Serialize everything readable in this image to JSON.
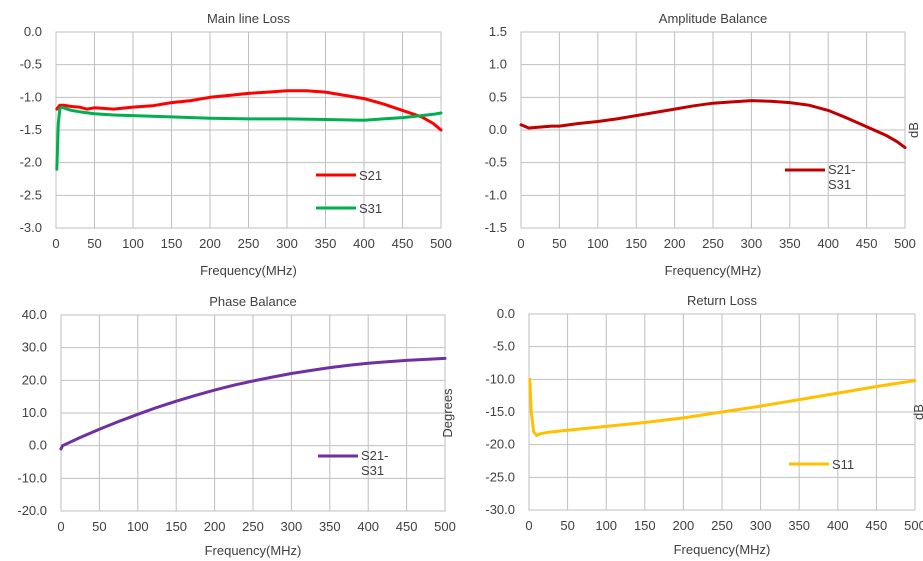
{
  "chart_data": [
    {
      "type": "line",
      "title": "Main line Loss",
      "xlabel": "Frequency(MHz)",
      "ylabel": "",
      "xlim": [
        0,
        500
      ],
      "ylim": [
        -3.0,
        0.0
      ],
      "xticks": [
        "0",
        "50",
        "100",
        "150",
        "200",
        "250",
        "300",
        "350",
        "400",
        "450",
        "500"
      ],
      "yticks": [
        "0.0",
        "-0.5",
        "-1.0",
        "-1.5",
        "-2.0",
        "-2.5",
        "-3.0"
      ],
      "grid": true,
      "legend_position": "bottom-right",
      "series": [
        {
          "name": "S21",
          "color": "#ff0000",
          "x": [
            1,
            5,
            10,
            20,
            30,
            40,
            50,
            75,
            100,
            125,
            150,
            175,
            200,
            225,
            250,
            275,
            300,
            325,
            350,
            375,
            400,
            425,
            450,
            475,
            490,
            500
          ],
          "y": [
            -1.18,
            -1.12,
            -1.12,
            -1.14,
            -1.15,
            -1.18,
            -1.16,
            -1.18,
            -1.15,
            -1.13,
            -1.08,
            -1.05,
            -1.0,
            -0.97,
            -0.94,
            -0.92,
            -0.9,
            -0.9,
            -0.92,
            -0.97,
            -1.02,
            -1.1,
            -1.2,
            -1.3,
            -1.4,
            -1.5
          ]
        },
        {
          "name": "S31",
          "color": "#00b050",
          "x": [
            1,
            3,
            5,
            8,
            12,
            20,
            30,
            50,
            75,
            100,
            150,
            200,
            250,
            300,
            350,
            400,
            450,
            475,
            490,
            500
          ],
          "y": [
            -2.1,
            -1.4,
            -1.17,
            -1.15,
            -1.17,
            -1.2,
            -1.22,
            -1.25,
            -1.27,
            -1.28,
            -1.3,
            -1.32,
            -1.33,
            -1.33,
            -1.34,
            -1.35,
            -1.31,
            -1.28,
            -1.26,
            -1.24
          ]
        }
      ]
    },
    {
      "type": "line",
      "title": "Amplitude Balance",
      "xlabel": "Frequency(MHz)",
      "ylabel": "dB",
      "xlim": [
        0,
        500
      ],
      "ylim": [
        -1.5,
        1.5
      ],
      "xticks": [
        "0",
        "50",
        "100",
        "150",
        "200",
        "250",
        "300",
        "350",
        "400",
        "450",
        "500"
      ],
      "yticks": [
        "1.5",
        "1.0",
        "0.5",
        "0.0",
        "-0.5",
        "-1.0",
        "-1.5"
      ],
      "grid": true,
      "legend_position": "bottom-right",
      "series": [
        {
          "name": "S21-S31",
          "legend_lines": [
            "S21-",
            "S31"
          ],
          "color": "#c00000",
          "x": [
            0,
            10,
            20,
            30,
            40,
            50,
            75,
            100,
            125,
            150,
            175,
            200,
            225,
            250,
            275,
            300,
            325,
            350,
            375,
            400,
            425,
            450,
            475,
            490,
            500
          ],
          "y": [
            0.08,
            0.03,
            0.04,
            0.05,
            0.06,
            0.06,
            0.1,
            0.13,
            0.17,
            0.22,
            0.27,
            0.32,
            0.37,
            0.41,
            0.43,
            0.45,
            0.44,
            0.42,
            0.38,
            0.3,
            0.18,
            0.05,
            -0.08,
            -0.18,
            -0.27
          ]
        }
      ]
    },
    {
      "type": "line",
      "title": "Phase Balance",
      "xlabel": "Frequency(MHz)",
      "ylabel": "Degrees",
      "xlim": [
        0,
        500
      ],
      "ylim": [
        -20.0,
        40.0
      ],
      "xticks": [
        "0",
        "50",
        "100",
        "150",
        "200",
        "250",
        "300",
        "350",
        "400",
        "450",
        "500"
      ],
      "yticks": [
        "40.0",
        "30.0",
        "20.0",
        "10.0",
        "0.0",
        "-10.0",
        "-20.0"
      ],
      "grid": true,
      "legend_position": "bottom-right",
      "series": [
        {
          "name": "S21-S31",
          "legend_lines": [
            "S21-",
            "S31"
          ],
          "color": "#7030a0",
          "x": [
            0,
            2,
            25,
            50,
            75,
            100,
            125,
            150,
            175,
            200,
            225,
            250,
            275,
            300,
            325,
            350,
            375,
            400,
            425,
            450,
            475,
            500
          ],
          "y": [
            -1.0,
            0.0,
            2.5,
            5.0,
            7.4,
            9.6,
            11.7,
            13.6,
            15.4,
            17.0,
            18.5,
            19.8,
            21.0,
            22.1,
            23.0,
            23.9,
            24.6,
            25.2,
            25.7,
            26.1,
            26.4,
            26.7
          ]
        }
      ]
    },
    {
      "type": "line",
      "title": "Return Loss",
      "xlabel": "Frequency(MHz)",
      "ylabel": "dB",
      "xlim": [
        0,
        500
      ],
      "ylim": [
        -30.0,
        0.0
      ],
      "xticks": [
        "0",
        "50",
        "100",
        "150",
        "200",
        "250",
        "300",
        "350",
        "400",
        "450",
        "500"
      ],
      "yticks": [
        "0.0",
        "-5.0",
        "-10.0",
        "-15.0",
        "-20.0",
        "-25.0",
        "-30.0"
      ],
      "grid": true,
      "legend_position": "bottom-right",
      "series": [
        {
          "name": "S11",
          "color": "#ffc000",
          "x": [
            1,
            3,
            6,
            10,
            15,
            25,
            50,
            100,
            150,
            200,
            250,
            300,
            350,
            400,
            450,
            500
          ],
          "y": [
            -10.0,
            -15.0,
            -18.0,
            -18.6,
            -18.3,
            -18.1,
            -17.8,
            -17.2,
            -16.6,
            -15.9,
            -15.0,
            -14.1,
            -13.1,
            -12.1,
            -11.1,
            -10.2
          ]
        }
      ]
    }
  ]
}
